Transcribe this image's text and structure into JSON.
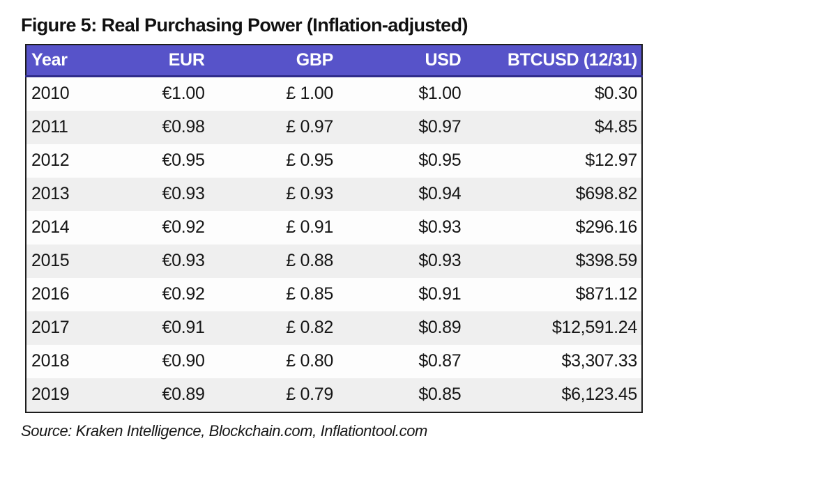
{
  "title": "Figure 5: Real Purchasing Power (Inflation-adjusted)",
  "source": "Source: Kraken Intelligence, Blockchain.com, Inflationtool.com",
  "colors": {
    "header_bg": "#5753c9",
    "header_border_bottom": "#2e2b8a",
    "header_text": "#ffffff",
    "stripe_light": "#fdfdfd",
    "stripe_gray": "#efefef",
    "table_border": "#1c1c1c",
    "text": "#161616"
  },
  "chart_data": {
    "type": "table",
    "title": "Figure 5: Real Purchasing Power (Inflation-adjusted)",
    "columns": [
      "Year",
      "EUR",
      "GBP",
      "USD",
      "BTCUSD (12/31)"
    ],
    "rows": [
      [
        "2010",
        "€1.00",
        "£ 1.00",
        "$1.00",
        "$0.30"
      ],
      [
        "2011",
        "€0.98",
        "£ 0.97",
        "$0.97",
        "$4.85"
      ],
      [
        "2012",
        "€0.95",
        "£ 0.95",
        "$0.95",
        "$12.97"
      ],
      [
        "2013",
        "€0.93",
        "£ 0.93",
        "$0.94",
        "$698.82"
      ],
      [
        "2014",
        "€0.92",
        "£ 0.91",
        "$0.93",
        "$296.16"
      ],
      [
        "2015",
        "€0.93",
        "£ 0.88",
        "$0.93",
        "$398.59"
      ],
      [
        "2016",
        "€0.92",
        "£ 0.85",
        "$0.91",
        "$871.12"
      ],
      [
        "2017",
        "€0.91",
        "£ 0.82",
        "$0.89",
        "$12,591.24"
      ],
      [
        "2018",
        "€0.90",
        "£ 0.80",
        "$0.87",
        "$3,307.33"
      ],
      [
        "2019",
        "€0.89",
        "£ 0.79",
        "$0.85",
        "$6,123.45"
      ]
    ],
    "btcusd_numeric": [
      0.3,
      4.85,
      12.97,
      698.82,
      296.16,
      398.59,
      871.12,
      12591.24,
      3307.33,
      6123.45
    ],
    "eur_numeric": [
      1.0,
      0.98,
      0.95,
      0.93,
      0.92,
      0.93,
      0.92,
      0.91,
      0.9,
      0.89
    ],
    "gbp_numeric": [
      1.0,
      0.97,
      0.95,
      0.93,
      0.91,
      0.88,
      0.85,
      0.82,
      0.8,
      0.79
    ],
    "usd_numeric": [
      1.0,
      0.97,
      0.95,
      0.94,
      0.93,
      0.93,
      0.91,
      0.89,
      0.87,
      0.85
    ],
    "legend_position": "none",
    "grid": "off"
  }
}
